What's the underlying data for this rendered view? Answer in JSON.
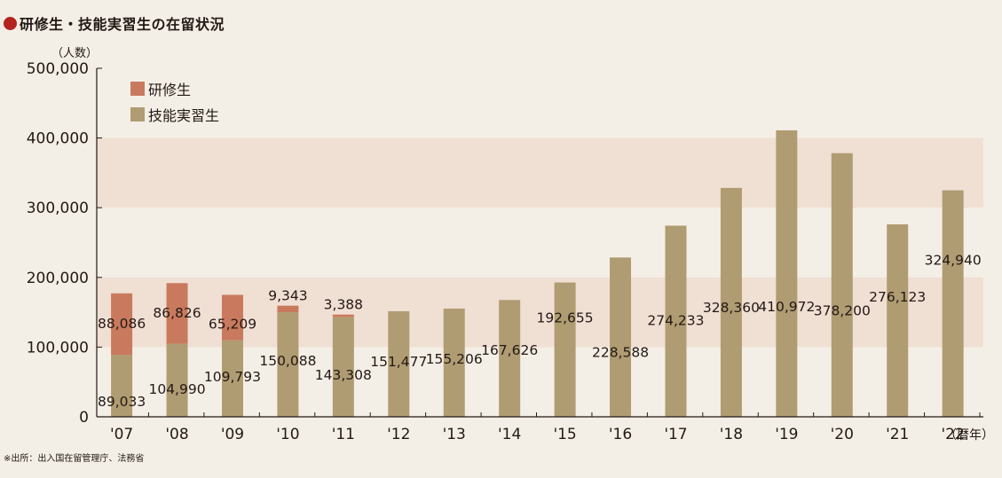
{
  "title": "研修生・技能実習生の在留状況",
  "source_note": "※出所：出入国在留管理庁、法務省",
  "colors": {
    "trainee": "#c97a5e",
    "intern": "#b09c72",
    "band": "#f0dfd3",
    "title_dot": "#b3241f",
    "axis": "#231815"
  },
  "chart_data": {
    "type": "bar",
    "stacked": true,
    "title": "研修生・技能実習生の在留状況",
    "ylabel": "（人数）",
    "xlabel_suffix": "（暦年）",
    "ylim": [
      0,
      500000
    ],
    "yticks": [
      0,
      100000,
      200000,
      300000,
      400000,
      500000
    ],
    "ytick_labels": [
      "0",
      "100,000",
      "200,000",
      "300,000",
      "400,000",
      "500,000"
    ],
    "categories": [
      "'07",
      "'08",
      "'09",
      "'10",
      "'11",
      "'12",
      "'13",
      "'14",
      "'15",
      "'16",
      "'17",
      "'18",
      "'19",
      "'20",
      "'21",
      "'22"
    ],
    "shaded_bands": [
      [
        100000,
        200000
      ],
      [
        300000,
        400000
      ]
    ],
    "legend_position": "top-left",
    "series": [
      {
        "name": "技能実習生",
        "color_key": "intern",
        "values": [
          89033,
          104990,
          109793,
          150088,
          143308,
          151477,
          155206,
          167626,
          192655,
          228588,
          274233,
          328360,
          410972,
          378200,
          276123,
          324940
        ],
        "labels": [
          "89,033",
          "104,990",
          "109,793",
          "150,088",
          "143,308",
          "151,477",
          "155,206",
          "167,626",
          "192,655",
          "228,588",
          "274,233",
          "328,360",
          "410,972",
          "378,200",
          "276,123",
          "324,940"
        ]
      },
      {
        "name": "研修生",
        "color_key": "trainee",
        "values": [
          88086,
          86826,
          65209,
          9343,
          3388,
          0,
          0,
          0,
          0,
          0,
          0,
          0,
          0,
          0,
          0,
          0
        ],
        "labels": [
          "88,086",
          "86,826",
          "65,209",
          "9,343",
          "3,388",
          "",
          "",
          "",
          "",
          "",
          "",
          "",
          "",
          "",
          "",
          ""
        ]
      }
    ]
  }
}
